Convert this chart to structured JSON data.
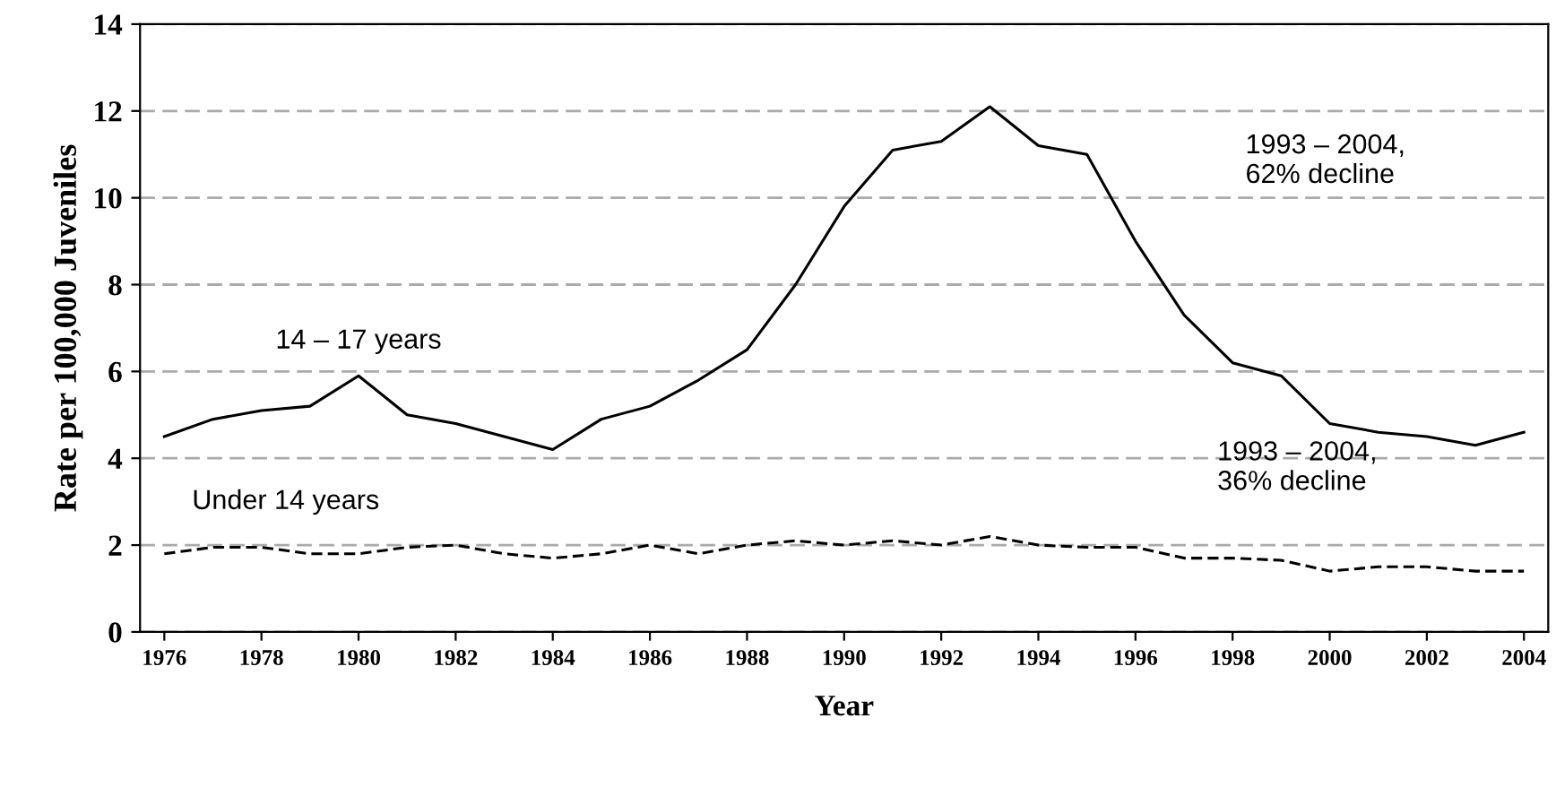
{
  "chart_data": {
    "type": "line",
    "xlabel": "Year",
    "ylabel": "Rate per 100,000 Juveniles",
    "x": [
      1976,
      1977,
      1978,
      1979,
      1980,
      1981,
      1982,
      1983,
      1984,
      1985,
      1986,
      1987,
      1988,
      1989,
      1990,
      1991,
      1992,
      1993,
      1994,
      1995,
      1996,
      1997,
      1998,
      1999,
      2000,
      2001,
      2002,
      2003,
      2004
    ],
    "series": [
      {
        "name": "14 – 17 years",
        "color": "#000000",
        "line_style": "solid",
        "values": [
          4.5,
          4.9,
          5.1,
          5.2,
          5.9,
          5.0,
          4.8,
          4.5,
          4.2,
          4.9,
          5.2,
          5.8,
          6.5,
          8.0,
          9.8,
          11.1,
          11.3,
          12.1,
          11.2,
          11.0,
          9.0,
          7.3,
          6.2,
          5.9,
          4.8,
          4.6,
          4.5,
          4.3,
          4.6
        ]
      },
      {
        "name": "Under 14 years",
        "color": "#000000",
        "line_style": "dashed",
        "values": [
          1.8,
          1.95,
          1.95,
          1.8,
          1.8,
          1.95,
          2.0,
          1.8,
          1.7,
          1.8,
          2.0,
          1.8,
          2.0,
          2.1,
          2.0,
          2.1,
          2.0,
          2.2,
          2.0,
          1.95,
          1.95,
          1.7,
          1.7,
          1.65,
          1.4,
          1.5,
          1.5,
          1.4,
          1.4
        ]
      }
    ],
    "annotations": [
      "1993 – 2004,\n62% decline",
      "1993 – 2004,\n36% decline"
    ],
    "xlim": [
      1975.5,
      2004.5
    ],
    "xticks": [
      1976,
      1978,
      1980,
      1982,
      1984,
      1986,
      1988,
      1990,
      1992,
      1994,
      1996,
      1998,
      2000,
      2002,
      2004
    ],
    "ylim": [
      0,
      14
    ],
    "yticks": [
      0,
      2,
      4,
      6,
      8,
      10,
      12,
      14
    ],
    "grid": "y",
    "legend": false,
    "marker": "none"
  }
}
